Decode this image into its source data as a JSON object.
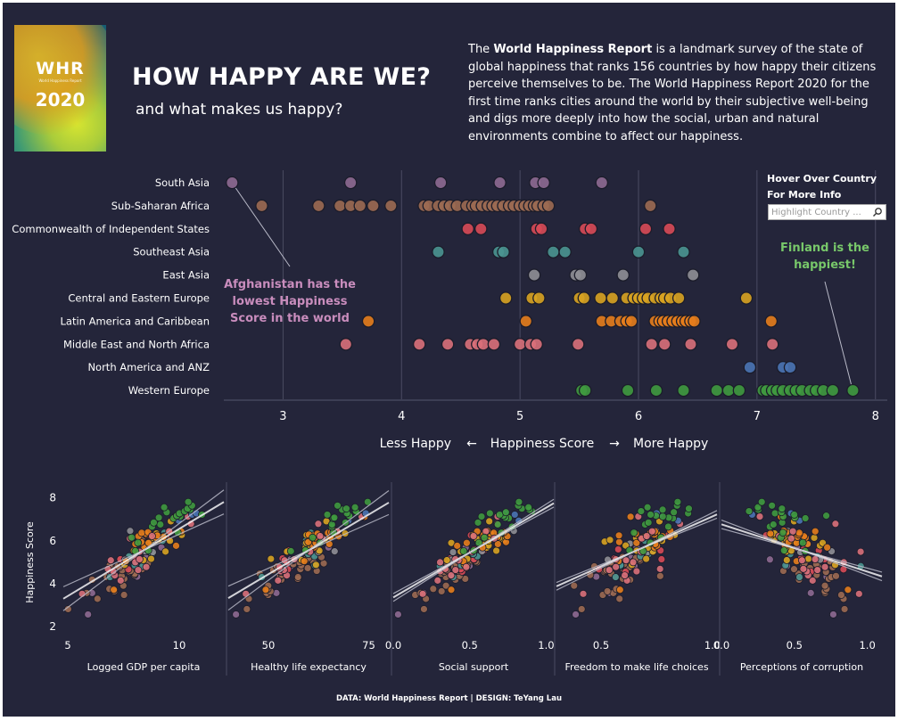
{
  "logo": {
    "mark": "WHR",
    "small": "World Happiness Report",
    "year": "2020"
  },
  "header": {
    "title": "HOW HAPPY ARE WE?",
    "subtitle": "and what makes us happy?",
    "intro_bold": "World Happiness Report",
    "intro_pre": "The ",
    "intro_post": " is a landmark survey of the state of global happiness that ranks 156 countries by how happy their citizens perceive themselves to be. The World Happiness Report 2020 for the first time ranks cities around the world by their subjective well-being and digs more deeply into how the social, urban and natural environments combine to affect our happiness."
  },
  "hover": {
    "line1": "Hover Over Country",
    "line2": "For More Info",
    "placeholder": "Highlight Country ..."
  },
  "colors": {
    "background": "#24253a",
    "South Asia": "#8e6a92",
    "Sub-Saharan Africa": "#9c6a52",
    "Commonwealth of Independent States": "#d84a57",
    "Southeast Asia": "#4a9591",
    "East Asia": "#8f8f96",
    "Central and Eastern Europe": "#d8a321",
    "Latin America and Caribbean": "#e67d1c",
    "Middle East and North Africa": "#d9707a",
    "North America and ANZ": "#4a74b4",
    "Western Europe": "#3f9a3f",
    "annotation_left": "#c98dbd",
    "annotation_right": "#78c86a"
  },
  "chart_data": [
    {
      "type": "scatter",
      "title": "",
      "xlabel": "Happiness Score",
      "xlabel_left": "Less Happy",
      "xlabel_right": "More Happy",
      "arrow_left": "←",
      "arrow_right": "→",
      "xlim": [
        2.5,
        8.1
      ],
      "xticks": [
        "3",
        "4",
        "5",
        "6",
        "7",
        "8"
      ],
      "grid": "vertical",
      "annotations": [
        {
          "lines": [
            "Afghanistan has the",
            "lowest Happiness",
            "Score in the world"
          ],
          "country": "Afghanistan",
          "value": 2.57
        },
        {
          "lines": [
            "Finland is the",
            "happiest!"
          ],
          "country": "Finland",
          "value": 7.81
        }
      ],
      "series": [
        {
          "name": "South Asia",
          "values": [
            2.57,
            3.57,
            4.33,
            4.83,
            5.13,
            5.2,
            5.69
          ]
        },
        {
          "name": "Sub-Saharan Africa",
          "values": [
            2.82,
            3.3,
            3.48,
            3.57,
            3.65,
            3.76,
            3.91,
            4.19,
            4.23,
            4.31,
            4.36,
            4.41,
            4.47,
            4.55,
            4.6,
            4.63,
            4.68,
            4.73,
            4.77,
            4.81,
            4.86,
            4.91,
            4.95,
            5.0,
            5.04,
            5.08,
            5.12,
            5.15,
            5.2,
            5.24,
            6.1
          ]
        },
        {
          "name": "Commonwealth of Independent States",
          "values": [
            4.56,
            4.67,
            5.14,
            5.18,
            5.55,
            5.6,
            6.06,
            6.26
          ]
        },
        {
          "name": "Southeast Asia",
          "values": [
            4.31,
            4.82,
            4.86,
            5.28,
            5.38,
            6.0,
            6.38
          ]
        },
        {
          "name": "East Asia",
          "values": [
            5.12,
            5.47,
            5.51,
            5.87,
            6.46
          ]
        },
        {
          "name": "Central and Eastern Europe",
          "values": [
            4.88,
            5.1,
            5.16,
            5.5,
            5.54,
            5.68,
            5.78,
            5.9,
            5.96,
            6.0,
            6.04,
            6.08,
            6.14,
            6.19,
            6.22,
            6.27,
            6.34,
            6.91
          ]
        },
        {
          "name": "Latin America and Caribbean",
          "values": [
            3.72,
            5.05,
            5.69,
            5.77,
            5.85,
            5.9,
            5.94,
            6.14,
            6.18,
            6.21,
            6.25,
            6.29,
            6.33,
            6.37,
            6.4,
            6.44,
            6.47,
            7.12
          ]
        },
        {
          "name": "Middle East and North Africa",
          "values": [
            3.53,
            4.15,
            4.39,
            4.58,
            4.64,
            4.69,
            4.78,
            5.0,
            5.09,
            5.14,
            5.49,
            6.11,
            6.22,
            6.44,
            6.79,
            7.13
          ]
        },
        {
          "name": "North America and ANZ",
          "values": [
            6.94,
            7.22,
            7.28
          ]
        },
        {
          "name": "Western Europe",
          "values": [
            5.52,
            5.55,
            5.91,
            6.15,
            6.38,
            6.66,
            6.76,
            6.85,
            7.05,
            7.08,
            7.13,
            7.17,
            7.22,
            7.28,
            7.33,
            7.38,
            7.45,
            7.5,
            7.56,
            7.64,
            7.81
          ]
        }
      ]
    },
    {
      "type": "scatter",
      "ylabel": "Happiness Score",
      "ylim": [
        1.8,
        8.4
      ],
      "yticks": [
        "2",
        "4",
        "6",
        "8"
      ],
      "panels": [
        {
          "xlabel": "Logged GDP per capita",
          "xlim": [
            4.8,
            12.0
          ],
          "xticks": [
            {
              "v": 5,
              "t": "5"
            },
            {
              "v": 10,
              "t": "10"
            }
          ],
          "r": 0.78,
          "spread": 0.62
        },
        {
          "xlabel": "Healthy life expectancy",
          "xlim": [
            40,
            80
          ],
          "xticks": [
            {
              "v": 50,
              "t": "50"
            },
            {
              "v": 75,
              "t": "75"
            }
          ],
          "r": 0.77,
          "spread": 0.62
        },
        {
          "xlabel": "Social support",
          "xlim": [
            0.0,
            1.05
          ],
          "xticks": [
            {
              "v": 0.0,
              "t": "0.0"
            },
            {
              "v": 0.5,
              "t": "0.5"
            },
            {
              "v": 1.0,
              "t": "1.0"
            }
          ],
          "r": 0.76,
          "spread": 0.2
        },
        {
          "xlabel": "Freedom to make life choices",
          "xlim": [
            0.3,
            1.02
          ],
          "xticks": [
            {
              "v": 0.5,
              "t": "0.5"
            },
            {
              "v": 1.0,
              "t": "1.0"
            }
          ],
          "r": 0.58,
          "spread": 0.2
        },
        {
          "xlabel": "Perceptions of corruption",
          "xlim": [
            0.0,
            1.1
          ],
          "xticks": [
            {
              "v": 0.0,
              "t": "0.0"
            },
            {
              "v": 0.5,
              "t": "0.5"
            },
            {
              "v": 1.0,
              "t": "1.0"
            }
          ],
          "r": -0.42,
          "spread": 0.22
        }
      ]
    }
  ],
  "footer": {
    "credit": "DATA: World Happiness Report | DESIGN: TeYang Lau"
  }
}
